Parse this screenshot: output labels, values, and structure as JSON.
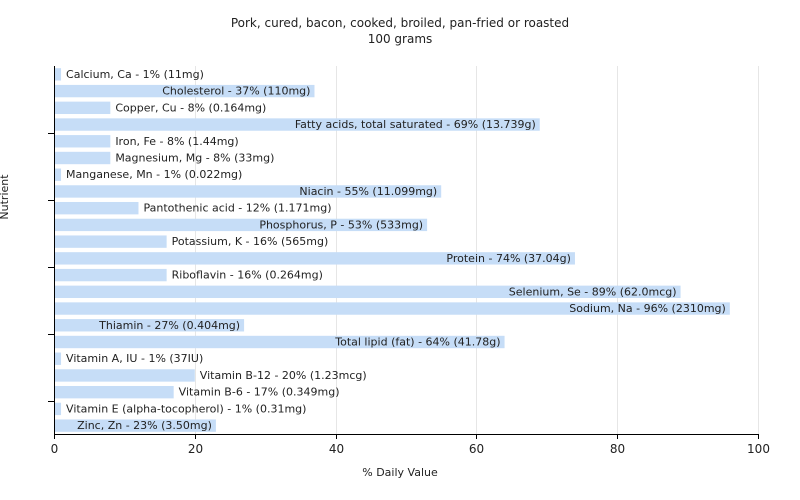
{
  "chart_data": {
    "type": "bar",
    "orientation": "horizontal",
    "title": "Pork, cured, bacon, cooked, broiled, pan-fried or roasted",
    "subtitle": "100 grams",
    "xlabel": "% Daily Value",
    "ylabel": "Nutrient",
    "xlim": [
      0,
      100
    ],
    "xticks": [
      0,
      20,
      40,
      60,
      80,
      100
    ],
    "grid": true,
    "bar_color": "#c6ddf7",
    "categories": [
      "Calcium, Ca",
      "Cholesterol",
      "Copper, Cu",
      "Fatty acids, total saturated",
      "Iron, Fe",
      "Magnesium, Mg",
      "Manganese, Mn",
      "Niacin",
      "Pantothenic acid",
      "Phosphorus, P",
      "Potassium, K",
      "Protein",
      "Riboflavin",
      "Selenium, Se",
      "Sodium, Na",
      "Thiamin",
      "Total lipid (fat)",
      "Vitamin A, IU",
      "Vitamin B-12",
      "Vitamin B-6",
      "Vitamin E (alpha-tocopherol)",
      "Zinc, Zn"
    ],
    "values": [
      1,
      37,
      8,
      69,
      8,
      8,
      1,
      55,
      12,
      53,
      16,
      74,
      16,
      89,
      96,
      27,
      64,
      1,
      20,
      17,
      1,
      23
    ],
    "labels": [
      "Calcium, Ca - 1% (11mg)",
      "Cholesterol - 37% (110mg)",
      "Copper, Cu - 8% (0.164mg)",
      "Fatty acids, total saturated - 69% (13.739g)",
      "Iron, Fe - 8% (1.44mg)",
      "Magnesium, Mg - 8% (33mg)",
      "Manganese, Mn - 1% (0.022mg)",
      "Niacin - 55% (11.099mg)",
      "Pantothenic acid - 12% (1.171mg)",
      "Phosphorus, P - 53% (533mg)",
      "Potassium, K - 16% (565mg)",
      "Protein - 74% (37.04g)",
      "Riboflavin - 16% (0.264mg)",
      "Selenium, Se - 89% (62.0mcg)",
      "Sodium, Na - 96% (2310mg)",
      "Thiamin - 27% (0.404mg)",
      "Total lipid (fat) - 64% (41.78g)",
      "Vitamin A, IU - 1% (37IU)",
      "Vitamin B-12 - 20% (1.23mcg)",
      "Vitamin B-6 - 17% (0.349mg)",
      "Vitamin E (alpha-tocopherol) - 1% (0.31mg)",
      "Zinc, Zn - 23% (3.50mg)"
    ]
  }
}
